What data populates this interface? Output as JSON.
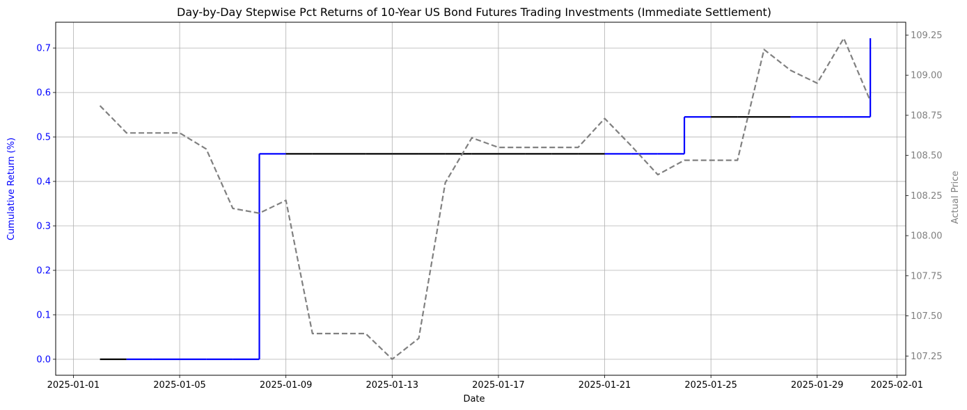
{
  "chart_data": {
    "type": "line",
    "title": "Day-by-Day Stepwise Pct Returns of 10-Year US Bond Futures Trading Investments (Immediate Settlement)",
    "xlabel": "Date",
    "ylabel_left": "Cumulative Return (%)",
    "ylabel_right": "Actual Price",
    "x_ticks": [
      "2025-01-01",
      "2025-01-05",
      "2025-01-09",
      "2025-01-13",
      "2025-01-17",
      "2025-01-21",
      "2025-01-25",
      "2025-01-29",
      "2025-02-01"
    ],
    "x_range": [
      "2024-12-31T08:00",
      "2025-02-01T08:00"
    ],
    "y_left_ticks": [
      0.0,
      0.1,
      0.2,
      0.3,
      0.4,
      0.5,
      0.6,
      0.7
    ],
    "y_left_range": [
      -0.036,
      0.758
    ],
    "y_right_ticks": [
      107.25,
      107.5,
      107.75,
      108.0,
      108.25,
      108.5,
      108.75,
      109.0,
      109.25
    ],
    "y_right_range": [
      107.13,
      109.33
    ],
    "grid": true,
    "colors": {
      "return_line": "#0000ff",
      "flat_segment": "#000000",
      "price_line": "#808080",
      "left_axis_text": "#0000ff",
      "right_axis_text": "#808080"
    },
    "series": [
      {
        "axis": "left",
        "style": "step-post",
        "dates": [
          "2025-01-02",
          "2025-01-03",
          "2025-01-04",
          "2025-01-05",
          "2025-01-06",
          "2025-01-07",
          "2025-01-08",
          "2025-01-09",
          "2025-01-10",
          "2025-01-11",
          "2025-01-12",
          "2025-01-13",
          "2025-01-14",
          "2025-01-15",
          "2025-01-16",
          "2025-01-17",
          "2025-01-18",
          "2025-01-19",
          "2025-01-20",
          "2025-01-21",
          "2025-01-22",
          "2025-01-23",
          "2025-01-24",
          "2025-01-25",
          "2025-01-26",
          "2025-01-27",
          "2025-01-28",
          "2025-01-29",
          "2025-01-30",
          "2025-01-31"
        ],
        "values": [
          0.0,
          0.0,
          0.0,
          0.0,
          0.0,
          0.0,
          0.462,
          0.462,
          0.462,
          0.462,
          0.462,
          0.462,
          0.462,
          0.462,
          0.462,
          0.462,
          0.462,
          0.462,
          0.462,
          0.462,
          0.462,
          0.462,
          0.545,
          0.545,
          0.545,
          0.545,
          0.545,
          0.545,
          0.545,
          0.722
        ],
        "flat_dates": [
          "2025-01-02",
          "2025-01-09",
          "2025-01-10",
          "2025-01-11",
          "2025-01-12",
          "2025-01-13",
          "2025-01-14",
          "2025-01-15",
          "2025-01-16",
          "2025-01-17",
          "2025-01-18",
          "2025-01-19",
          "2025-01-20",
          "2025-01-25",
          "2025-01-26",
          "2025-01-27"
        ]
      },
      {
        "axis": "right",
        "style": "dashed",
        "dates": [
          "2025-01-02",
          "2025-01-03",
          "2025-01-04",
          "2025-01-05",
          "2025-01-06",
          "2025-01-07",
          "2025-01-08",
          "2025-01-09",
          "2025-01-10",
          "2025-01-11",
          "2025-01-12",
          "2025-01-13",
          "2025-01-14",
          "2025-01-15",
          "2025-01-16",
          "2025-01-17",
          "2025-01-18",
          "2025-01-19",
          "2025-01-20",
          "2025-01-21",
          "2025-01-22",
          "2025-01-23",
          "2025-01-24",
          "2025-01-25",
          "2025-01-26",
          "2025-01-27",
          "2025-01-28",
          "2025-01-29",
          "2025-01-30",
          "2025-01-31"
        ],
        "values": [
          108.81,
          108.64,
          108.64,
          108.64,
          108.54,
          108.17,
          108.14,
          108.22,
          107.39,
          107.39,
          107.39,
          107.23,
          107.36,
          108.33,
          108.61,
          108.55,
          108.55,
          108.55,
          108.55,
          108.73,
          108.56,
          108.38,
          108.47,
          108.47,
          108.47,
          109.16,
          109.03,
          108.95,
          109.23,
          108.84
        ]
      }
    ]
  }
}
